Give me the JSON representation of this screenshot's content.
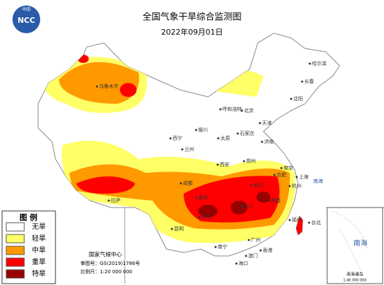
{
  "header": {
    "title": "全国气象干旱综合监测图",
    "date": "2022年09月01日",
    "logo_top": "中国",
    "logo_text": "NCC"
  },
  "legend": {
    "title": "图 例",
    "items": [
      {
        "label": "无旱",
        "color": "#ffffff"
      },
      {
        "label": "轻旱",
        "color": "#ffff66"
      },
      {
        "label": "中旱",
        "color": "#ff9900"
      },
      {
        "label": "重旱",
        "color": "#ff0000"
      },
      {
        "label": "特旱",
        "color": "#990000"
      }
    ]
  },
  "credits": [
    "国家气候中心",
    "审图号：GS(2019)1786号",
    "比例尺：1:20 000 000"
  ],
  "cities": [
    "哈尔滨",
    "长春",
    "沈阳",
    "北京",
    "天津",
    "呼和浩特",
    "石家庄",
    "太原",
    "济南",
    "银川",
    "西宁",
    "兰州",
    "郑州",
    "西安",
    "合肥",
    "南京",
    "上海",
    "武汉",
    "杭州",
    "成都",
    "重庆",
    "长沙",
    "南昌",
    "贵阳",
    "福州",
    "台北",
    "昆明",
    "南宁",
    "广州",
    "香港",
    "澳门",
    "海口",
    "乌鲁木齐",
    "拉萨"
  ],
  "seas": [
    "南海"
  ],
  "inset": {
    "title": "南海",
    "caption": "南海诸岛",
    "scale": "1:40 000 000"
  }
}
